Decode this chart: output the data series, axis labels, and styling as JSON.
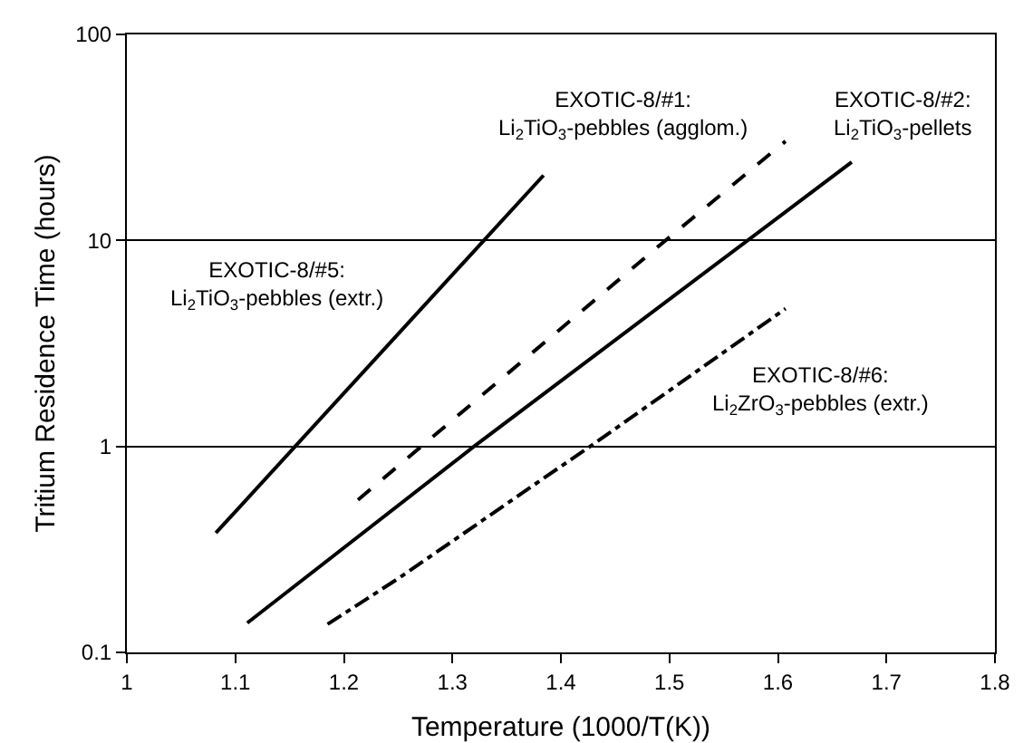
{
  "chart_data": {
    "type": "line",
    "xlabel": "Temperature (1000/T(K))",
    "ylabel": "Tritium Residence Time (hours)",
    "log": "y",
    "grid": "y",
    "marker": "none",
    "xlim": [
      1,
      1.8
    ],
    "xticks": [
      1,
      1.1,
      1.2,
      1.3,
      1.4,
      1.5,
      1.6,
      1.7,
      1.8
    ],
    "ylim": [
      0.1,
      100
    ],
    "yticks": [
      0.1,
      1,
      10,
      100
    ],
    "series": [
      {
        "color": "#000000",
        "line_style": "solid",
        "x": [
          1.082,
          1.384
        ],
        "values": [
          0.38,
          20.7
        ]
      },
      {
        "color": "#000000",
        "line_style": "dashed",
        "x": [
          1.213,
          1.486,
          1.607
        ],
        "values": [
          0.55,
          9.0,
          30.3
        ]
      },
      {
        "color": "#000000",
        "line_style": "solid",
        "x": [
          1.111,
          1.32,
          1.668
        ],
        "values": [
          0.139,
          1.0,
          24.0
        ]
      },
      {
        "color": "#000000",
        "line_style": "dashdot",
        "x": [
          1.185,
          1.251,
          1.384,
          1.427,
          1.607
        ],
        "values": [
          0.137,
          0.23,
          0.7,
          1.0,
          4.66
        ]
      }
    ],
    "annotations": [
      "EXOTIC-8/#5:\nLi$_{2}$TiO$_{3}$-pebbles (extr.)",
      "EXOTIC-8/#1:\nLi$_{2}$TiO$_{3}$-pebbles (agglom.)",
      "EXOTIC-8/#2:\nLi$_{2}$TiO$_{3}$-pellets",
      "EXOTIC-8/#6:\nLi$_{2}$ZrO$_{3}$-pebbles (extr.)"
    ]
  }
}
